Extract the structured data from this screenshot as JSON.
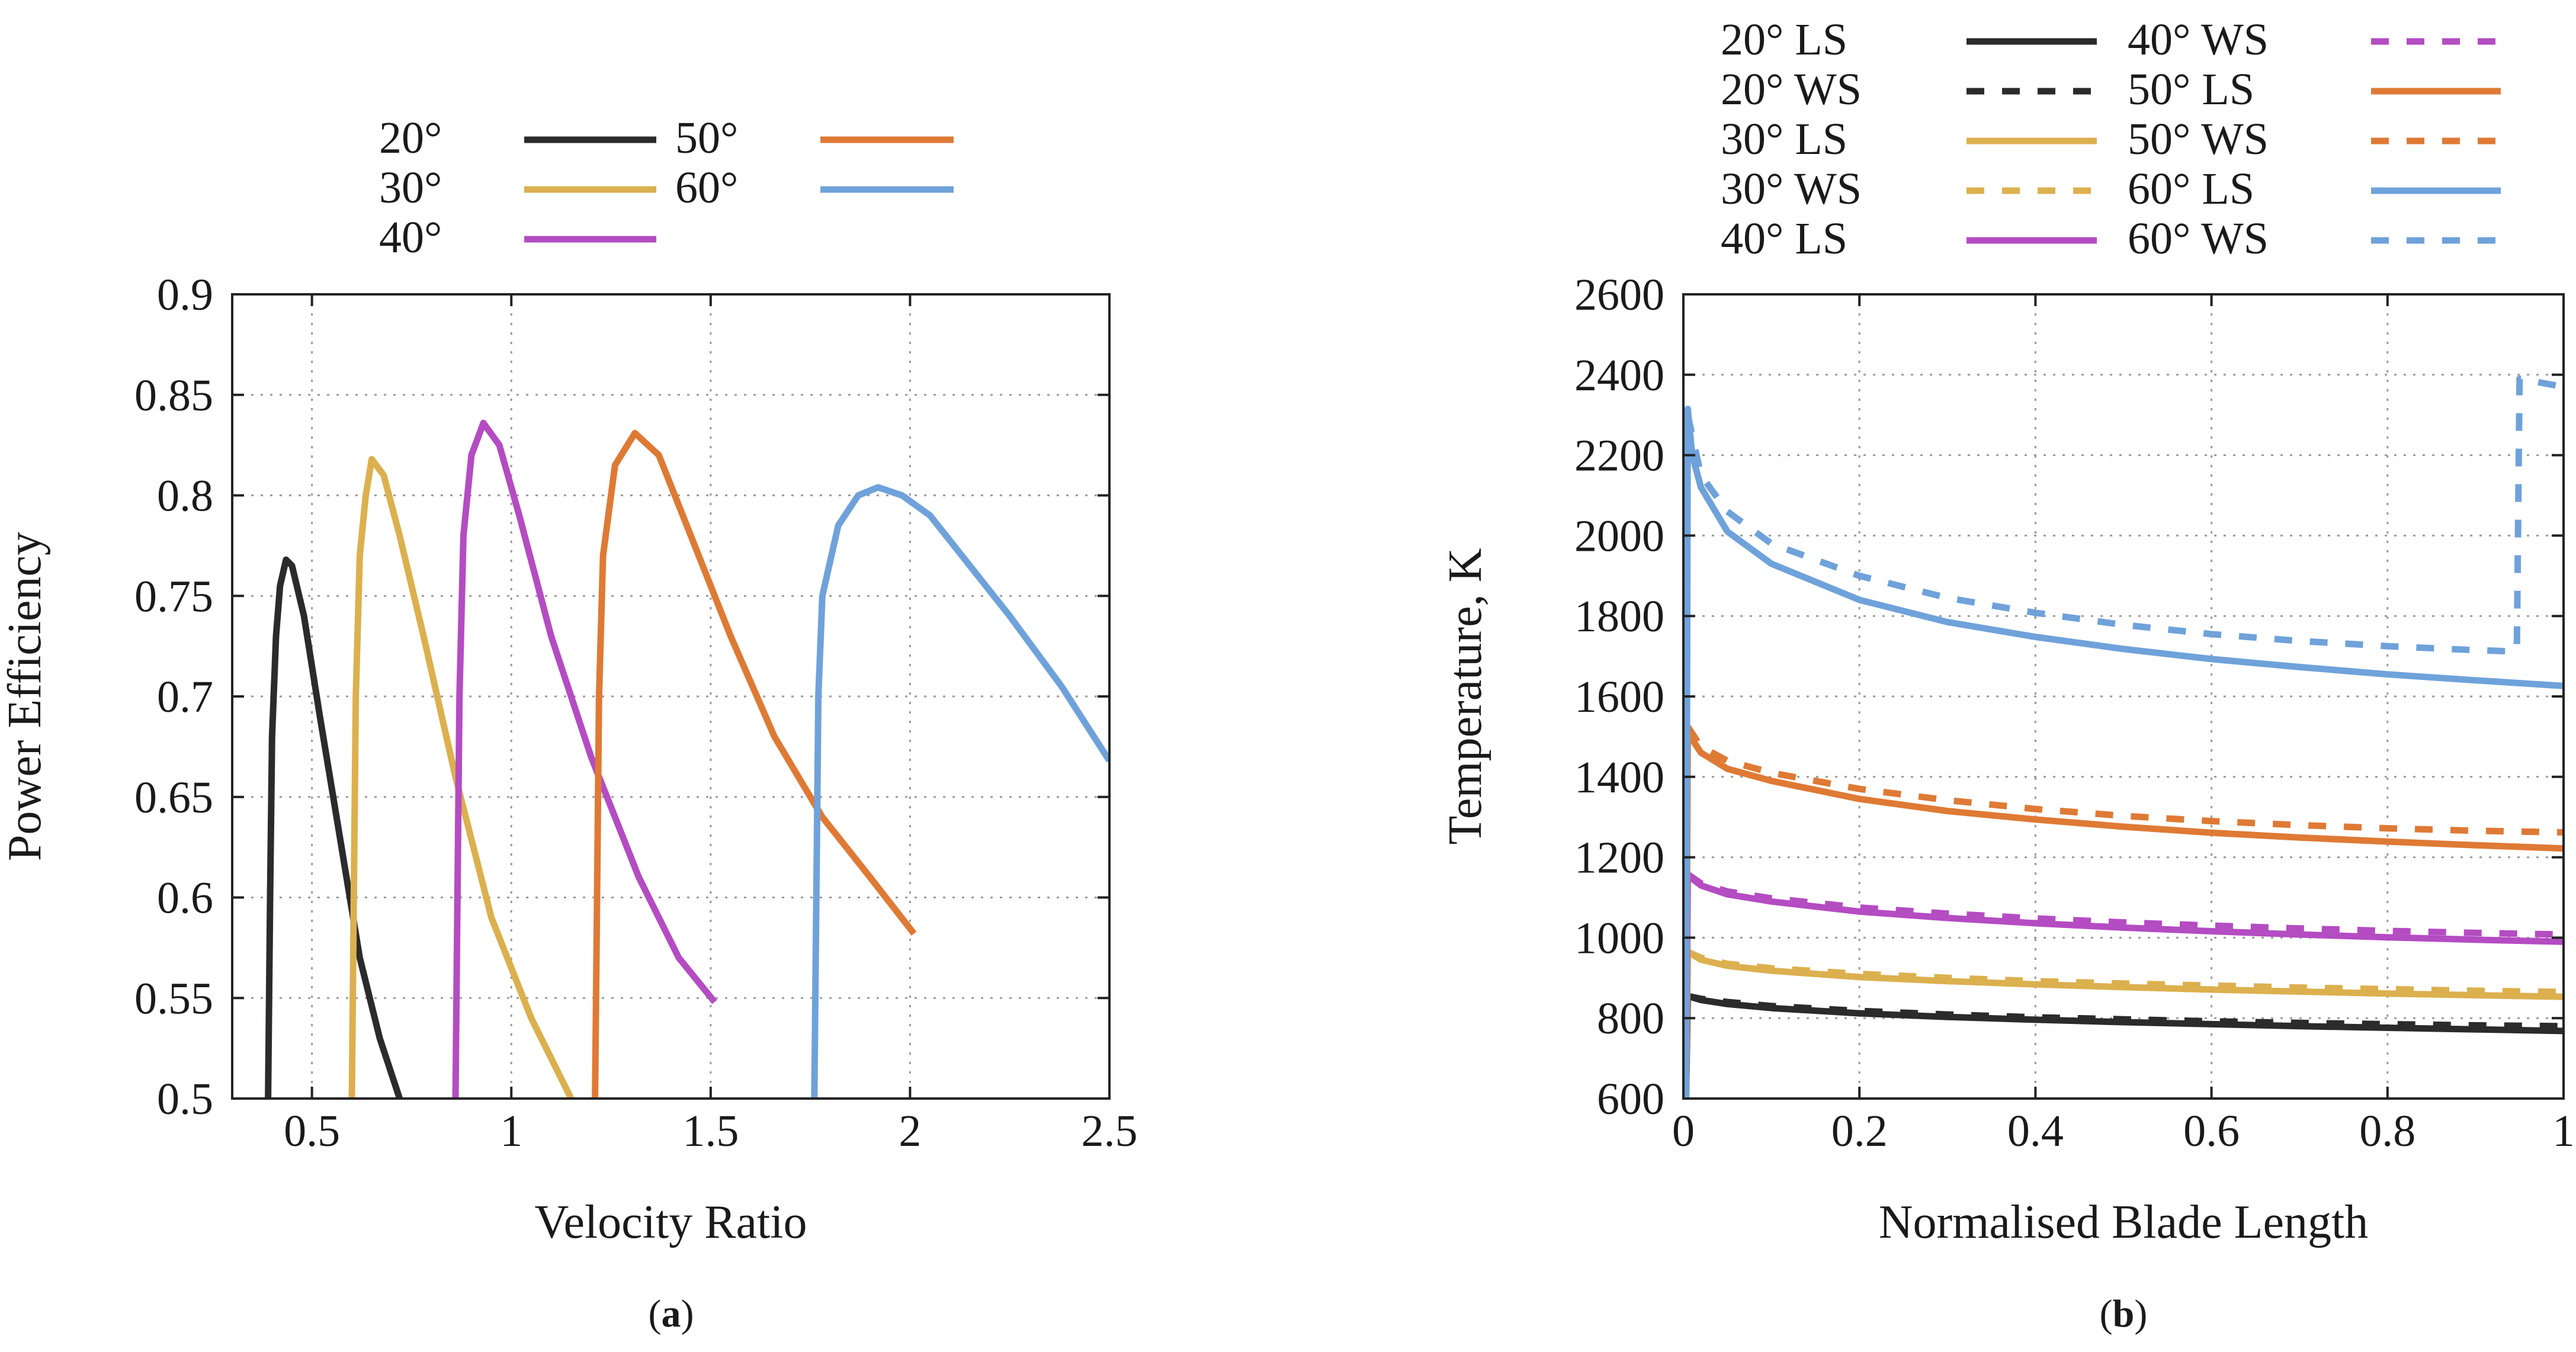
{
  "colors": {
    "20": "#2b2b2b",
    "30": "#dcb04e",
    "40": "#b44cc2",
    "50": "#df7a35",
    "60": "#6fa2da",
    "grid": "#9a9a9a",
    "axis": "#222222"
  },
  "chart_data": [
    {
      "id": "a",
      "type": "line",
      "caption_letter": "a",
      "caption_open": "(",
      "caption_close": ")",
      "xlabel": "Velocity Ratio",
      "ylabel": "Power Efficiency",
      "xlim": [
        0.3,
        2.5
      ],
      "ylim": [
        0.5,
        0.9
      ],
      "xticks": [
        0.5,
        1,
        1.5,
        2,
        2.5
      ],
      "xtick_labels": [
        "0.5",
        "1",
        "1.5",
        "2",
        "2.5"
      ],
      "yticks": [
        0.5,
        0.55,
        0.6,
        0.65,
        0.7,
        0.75,
        0.8,
        0.85,
        0.9
      ],
      "ytick_labels": [
        "0.5",
        "0.55",
        "0.6",
        "0.65",
        "0.7",
        "0.75",
        "0.8",
        "0.85",
        "0.9"
      ],
      "grid": true,
      "legend_position": "top-center",
      "series": [
        {
          "name": "20°",
          "color_key": "20",
          "dash": "solid",
          "x": [
            0.39,
            0.395,
            0.4,
            0.41,
            0.42,
            0.435,
            0.45,
            0.48,
            0.52,
            0.57,
            0.62,
            0.67,
            0.72
          ],
          "y": [
            0.5,
            0.6,
            0.68,
            0.73,
            0.755,
            0.768,
            0.765,
            0.74,
            0.69,
            0.63,
            0.57,
            0.53,
            0.5
          ]
        },
        {
          "name": "30°",
          "color_key": "30",
          "dash": "solid",
          "x": [
            0.6,
            0.605,
            0.61,
            0.62,
            0.635,
            0.65,
            0.68,
            0.72,
            0.78,
            0.86,
            0.95,
            1.05,
            1.15
          ],
          "y": [
            0.5,
            0.6,
            0.7,
            0.77,
            0.8,
            0.818,
            0.81,
            0.78,
            0.73,
            0.66,
            0.59,
            0.54,
            0.5
          ]
        },
        {
          "name": "40°",
          "color_key": "40",
          "dash": "solid",
          "x": [
            0.86,
            0.865,
            0.87,
            0.88,
            0.9,
            0.93,
            0.97,
            1.02,
            1.1,
            1.2,
            1.32,
            1.42,
            1.51
          ],
          "y": [
            0.5,
            0.6,
            0.7,
            0.78,
            0.82,
            0.836,
            0.825,
            0.79,
            0.73,
            0.67,
            0.61,
            0.57,
            0.548
          ]
        },
        {
          "name": "50°",
          "color_key": "50",
          "dash": "solid",
          "x": [
            1.21,
            1.215,
            1.22,
            1.23,
            1.26,
            1.31,
            1.37,
            1.45,
            1.55,
            1.66,
            1.78,
            1.9,
            2.01
          ],
          "y": [
            0.5,
            0.6,
            0.7,
            0.77,
            0.815,
            0.831,
            0.82,
            0.78,
            0.73,
            0.68,
            0.64,
            0.61,
            0.582
          ]
        },
        {
          "name": "60°",
          "color_key": "60",
          "dash": "solid",
          "x": [
            1.76,
            1.765,
            1.77,
            1.78,
            1.82,
            1.87,
            1.92,
            1.98,
            2.05,
            2.15,
            2.25,
            2.38,
            2.5
          ],
          "y": [
            0.5,
            0.6,
            0.7,
            0.75,
            0.785,
            0.8,
            0.804,
            0.8,
            0.79,
            0.765,
            0.74,
            0.705,
            0.668
          ]
        }
      ],
      "legend_layout": [
        {
          "label": "20°",
          "series": 0,
          "col": 0,
          "row": 0
        },
        {
          "label": "30°",
          "series": 1,
          "col": 0,
          "row": 1
        },
        {
          "label": "40°",
          "series": 2,
          "col": 0,
          "row": 2
        },
        {
          "label": "50°",
          "series": 3,
          "col": 1,
          "row": 0
        },
        {
          "label": "60°",
          "series": 4,
          "col": 1,
          "row": 1
        }
      ]
    },
    {
      "id": "b",
      "type": "line",
      "caption_letter": "b",
      "caption_open": "(",
      "caption_close": ")",
      "xlabel": "Normalised Blade Length",
      "ylabel": "Temperature, K",
      "xlim": [
        0,
        1
      ],
      "ylim": [
        600,
        2600
      ],
      "xticks": [
        0,
        0.2,
        0.4,
        0.6,
        0.8,
        1
      ],
      "xtick_labels": [
        "0",
        "0.2",
        "0.4",
        "0.6",
        "0.8",
        "1"
      ],
      "yticks": [
        600,
        800,
        1000,
        1200,
        1400,
        1600,
        1800,
        2000,
        2200,
        2400,
        2600
      ],
      "ytick_labels": [
        "600",
        "800",
        "1000",
        "1200",
        "1400",
        "1600",
        "1800",
        "2000",
        "2200",
        "2400",
        "2600"
      ],
      "grid": true,
      "legend_position": "top",
      "series": [
        {
          "name": "20° LS",
          "color_key": "20",
          "dash": "solid",
          "x": [
            0.003,
            0.005,
            0.02,
            0.05,
            0.1,
            0.2,
            0.3,
            0.4,
            0.5,
            0.6,
            0.7,
            0.8,
            0.9,
            1.0
          ],
          "y": [
            600,
            855,
            845,
            835,
            825,
            812,
            803,
            796,
            790,
            785,
            780,
            776,
            772,
            768
          ]
        },
        {
          "name": "20° WS",
          "color_key": "20",
          "dash": "dashed",
          "x": [
            0.005,
            0.02,
            0.05,
            0.1,
            0.2,
            0.3,
            0.4,
            0.5,
            0.6,
            0.7,
            0.8,
            0.9,
            1.0
          ],
          "y": [
            855,
            848,
            840,
            830,
            818,
            809,
            802,
            797,
            792,
            788,
            785,
            782,
            780
          ]
        },
        {
          "name": "30° LS",
          "color_key": "30",
          "dash": "solid",
          "x": [
            0.003,
            0.005,
            0.02,
            0.05,
            0.1,
            0.2,
            0.3,
            0.4,
            0.5,
            0.6,
            0.7,
            0.8,
            0.9,
            1.0
          ],
          "y": [
            600,
            965,
            945,
            930,
            918,
            902,
            892,
            884,
            877,
            871,
            866,
            861,
            857,
            853
          ]
        },
        {
          "name": "30° WS",
          "color_key": "30",
          "dash": "dashed",
          "x": [
            0.005,
            0.02,
            0.05,
            0.1,
            0.2,
            0.3,
            0.4,
            0.5,
            0.6,
            0.7,
            0.8,
            0.9,
            1.0
          ],
          "y": [
            965,
            950,
            935,
            924,
            910,
            900,
            892,
            886,
            881,
            876,
            872,
            868,
            865
          ]
        },
        {
          "name": "40° LS",
          "color_key": "40",
          "dash": "solid",
          "x": [
            0.003,
            0.005,
            0.02,
            0.05,
            0.1,
            0.2,
            0.3,
            0.4,
            0.5,
            0.6,
            0.7,
            0.8,
            0.9,
            1.0
          ],
          "y": [
            600,
            1155,
            1130,
            1108,
            1090,
            1065,
            1049,
            1036,
            1025,
            1016,
            1008,
            1001,
            995,
            990
          ]
        },
        {
          "name": "40° WS",
          "color_key": "40",
          "dash": "dashed",
          "x": [
            0.005,
            0.02,
            0.05,
            0.1,
            0.2,
            0.3,
            0.4,
            0.5,
            0.6,
            0.7,
            0.8,
            0.9,
            1.0
          ],
          "y": [
            1158,
            1135,
            1115,
            1098,
            1075,
            1060,
            1048,
            1038,
            1030,
            1023,
            1017,
            1012,
            1008
          ]
        },
        {
          "name": "50° LS",
          "color_key": "50",
          "dash": "solid",
          "x": [
            0.003,
            0.005,
            0.02,
            0.05,
            0.1,
            0.2,
            0.3,
            0.4,
            0.5,
            0.6,
            0.7,
            0.8,
            0.9,
            1.0
          ],
          "y": [
            600,
            1510,
            1460,
            1420,
            1390,
            1345,
            1315,
            1294,
            1276,
            1261,
            1249,
            1239,
            1230,
            1222
          ]
        },
        {
          "name": "50° WS",
          "color_key": "50",
          "dash": "dashed",
          "x": [
            0.005,
            0.02,
            0.05,
            0.1,
            0.2,
            0.3,
            0.4,
            0.5,
            0.6,
            0.7,
            0.8,
            0.9,
            1.0
          ],
          "y": [
            1525,
            1475,
            1440,
            1410,
            1370,
            1342,
            1320,
            1303,
            1290,
            1280,
            1272,
            1266,
            1262
          ]
        },
        {
          "name": "60° LS",
          "color_key": "60",
          "dash": "solid",
          "x": [
            0.003,
            0.005,
            0.01,
            0.02,
            0.05,
            0.1,
            0.2,
            0.3,
            0.4,
            0.5,
            0.6,
            0.7,
            0.8,
            0.9,
            1.0
          ],
          "y": [
            600,
            2315,
            2200,
            2120,
            2010,
            1930,
            1840,
            1785,
            1748,
            1718,
            1693,
            1673,
            1655,
            1640,
            1626
          ]
        },
        {
          "name": "60° WS",
          "color_key": "60",
          "dash": "dashed",
          "x": [
            0.005,
            0.02,
            0.05,
            0.1,
            0.2,
            0.3,
            0.4,
            0.5,
            0.6,
            0.7,
            0.8,
            0.9,
            0.945,
            0.947,
            0.95,
            1.0
          ],
          "y": [
            2300,
            2150,
            2060,
            1980,
            1900,
            1845,
            1808,
            1778,
            1755,
            1738,
            1725,
            1715,
            1712,
            1725,
            2390,
            2370
          ]
        }
      ],
      "legend_layout": [
        {
          "label": "20° LS",
          "series": 0,
          "col": 0,
          "row": 0
        },
        {
          "label": "20° WS",
          "series": 1,
          "col": 0,
          "row": 1
        },
        {
          "label": "30° LS",
          "series": 2,
          "col": 0,
          "row": 2
        },
        {
          "label": "30° WS",
          "series": 3,
          "col": 0,
          "row": 3
        },
        {
          "label": "40° LS",
          "series": 4,
          "col": 0,
          "row": 4
        },
        {
          "label": "40° WS",
          "series": 5,
          "col": 1,
          "row": 0
        },
        {
          "label": "50° LS",
          "series": 6,
          "col": 1,
          "row": 1
        },
        {
          "label": "50° WS",
          "series": 7,
          "col": 1,
          "row": 2
        },
        {
          "label": "60° LS",
          "series": 8,
          "col": 1,
          "row": 3
        },
        {
          "label": "60° WS",
          "series": 9,
          "col": 1,
          "row": 4
        }
      ]
    }
  ]
}
